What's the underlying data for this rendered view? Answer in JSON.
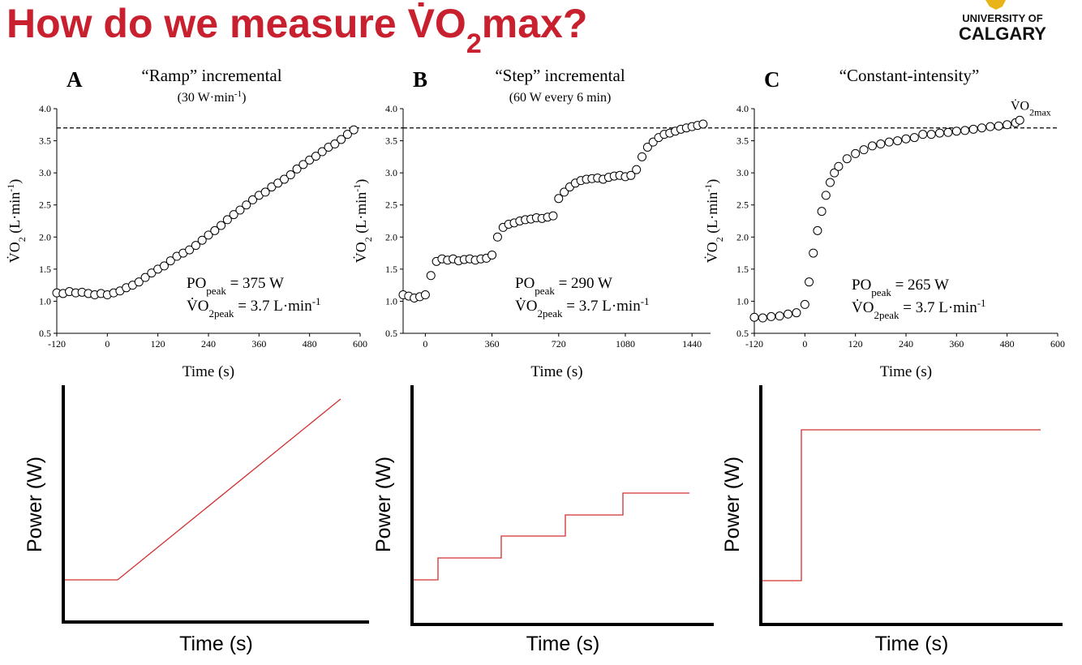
{
  "header": {
    "title": [
      "How do we measure V̇O",
      "2",
      "max?"
    ],
    "logo": [
      "UNIVERSITY OF",
      "CALGARY"
    ]
  },
  "chart_data": [
    {
      "type": "scatter",
      "panel": "A",
      "title": "“Ramp” incremental",
      "subtitle": [
        "(30 W·min",
        "-1",
        ")"
      ],
      "x_label": "Time (s)",
      "y_label": [
        "V̇O",
        "2",
        " (L·min",
        "-1",
        ")"
      ],
      "xlim": [
        -120,
        600
      ],
      "xticks": [
        -120,
        0,
        120,
        240,
        360,
        480,
        600
      ],
      "ylim": [
        0.5,
        4.0
      ],
      "yticks": [
        0.5,
        {
          "value": 1.0,
          "label": "1.0"
        },
        1.5,
        {
          "value": 2.0,
          "label": "2.0"
        },
        2.5,
        {
          "value": 3.0,
          "label": "3.0"
        },
        3.5,
        {
          "value": 4.0,
          "label": "4.0"
        }
      ],
      "reference_line": 3.7,
      "annotations": [
        [
          "PO",
          "peak",
          "  =  375 W"
        ],
        [
          "V̇O",
          "2peak",
          " = 3.7 L·min",
          "-1"
        ]
      ],
      "x": [
        -120,
        -105,
        -90,
        -75,
        -60,
        -45,
        -30,
        -15,
        0,
        15,
        30,
        45,
        60,
        75,
        90,
        105,
        120,
        135,
        150,
        165,
        180,
        195,
        210,
        225,
        240,
        255,
        270,
        285,
        300,
        315,
        330,
        345,
        360,
        375,
        390,
        405,
        420,
        435,
        450,
        465,
        480,
        495,
        510,
        525,
        540,
        555,
        570,
        585
      ],
      "values": [
        1.13,
        1.12,
        1.15,
        1.13,
        1.14,
        1.12,
        1.1,
        1.12,
        1.1,
        1.13,
        1.16,
        1.21,
        1.25,
        1.3,
        1.37,
        1.44,
        1.5,
        1.55,
        1.63,
        1.7,
        1.75,
        1.8,
        1.87,
        1.95,
        2.03,
        2.1,
        2.18,
        2.27,
        2.35,
        2.42,
        2.5,
        2.58,
        2.65,
        2.7,
        2.78,
        2.84,
        2.9,
        2.97,
        3.06,
        3.13,
        3.2,
        3.26,
        3.33,
        3.4,
        3.45,
        3.52,
        3.6,
        3.67
      ]
    },
    {
      "type": "scatter",
      "panel": "B",
      "title": "“Step” incremental",
      "subtitle": [
        "(60 W every 6 min)"
      ],
      "x_label": "Time (s)",
      "y_label": [
        "V̇O",
        "2",
        " (L·min",
        "-1",
        ")"
      ],
      "xlim": [
        -120,
        1540
      ],
      "xticks": [
        0,
        360,
        720,
        1080,
        1440
      ],
      "ylim": [
        0.5,
        4.0
      ],
      "yticks": [
        0.5,
        {
          "value": 1.0,
          "label": "1.0"
        },
        1.5,
        {
          "value": 2.0,
          "label": "2.0"
        },
        2.5,
        {
          "value": 3.0,
          "label": "3.0"
        },
        3.5,
        {
          "value": 4.0,
          "label": "4.0"
        }
      ],
      "reference_line": 3.7,
      "annotations": [
        [
          "PO",
          "peak",
          "  =  290 W"
        ],
        [
          "V̇O",
          "2peak",
          " = 3.7 L·min",
          "-1"
        ]
      ],
      "x": [
        -120,
        -90,
        -60,
        -30,
        0,
        30,
        60,
        90,
        120,
        150,
        180,
        210,
        240,
        270,
        300,
        330,
        360,
        390,
        420,
        450,
        480,
        510,
        540,
        570,
        600,
        630,
        660,
        690,
        720,
        750,
        780,
        810,
        840,
        870,
        900,
        930,
        960,
        990,
        1020,
        1050,
        1080,
        1110,
        1140,
        1170,
        1200,
        1230,
        1260,
        1290,
        1320,
        1350,
        1380,
        1410,
        1440,
        1470,
        1500
      ],
      "values": [
        1.1,
        1.08,
        1.05,
        1.07,
        1.1,
        1.4,
        1.62,
        1.66,
        1.64,
        1.66,
        1.63,
        1.65,
        1.66,
        1.64,
        1.66,
        1.67,
        1.72,
        2.0,
        2.15,
        2.2,
        2.22,
        2.25,
        2.27,
        2.28,
        2.3,
        2.29,
        2.31,
        2.33,
        2.6,
        2.7,
        2.78,
        2.84,
        2.88,
        2.9,
        2.91,
        2.92,
        2.9,
        2.93,
        2.95,
        2.96,
        2.94,
        2.96,
        3.05,
        3.25,
        3.4,
        3.48,
        3.55,
        3.6,
        3.62,
        3.65,
        3.68,
        3.7,
        3.72,
        3.74,
        3.76
      ]
    },
    {
      "type": "scatter",
      "panel": "C",
      "title": "“Constant-intensity”",
      "x_label": "Time (s)",
      "y_label": [
        "V̇O",
        "2",
        " (L·min",
        "-1",
        ")"
      ],
      "xlim": [
        -120,
        600
      ],
      "xticks": [
        -120,
        0,
        120,
        240,
        360,
        480,
        600
      ],
      "ylim": [
        0.5,
        4.0
      ],
      "yticks": [
        0.5,
        {
          "value": 1.0,
          "label": "1.0"
        },
        1.5,
        {
          "value": 2.0,
          "label": "2.0"
        },
        2.5,
        {
          "value": 3.0,
          "label": "3.0"
        },
        3.5,
        {
          "value": 4.0,
          "label": "4.0"
        }
      ],
      "reference_line": 3.7,
      "reference_label": [
        "V̇O",
        "2max"
      ],
      "annotations": [
        [
          "PO",
          "peak",
          " = 265 W"
        ],
        [
          "V̇O",
          "2peak",
          " = 3.7 L·min",
          "-1"
        ]
      ],
      "x": [
        -120,
        -100,
        -80,
        -60,
        -40,
        -20,
        0,
        10,
        20,
        30,
        40,
        50,
        60,
        70,
        80,
        100,
        120,
        140,
        160,
        180,
        200,
        220,
        240,
        260,
        280,
        300,
        320,
        340,
        360,
        380,
        400,
        420,
        440,
        460,
        480,
        500,
        510
      ],
      "values": [
        0.75,
        0.74,
        0.76,
        0.77,
        0.8,
        0.82,
        0.95,
        1.3,
        1.75,
        2.1,
        2.4,
        2.65,
        2.85,
        3.0,
        3.1,
        3.22,
        3.3,
        3.36,
        3.42,
        3.45,
        3.48,
        3.5,
        3.53,
        3.55,
        3.6,
        3.6,
        3.62,
        3.63,
        3.65,
        3.66,
        3.68,
        3.7,
        3.72,
        3.73,
        3.75,
        3.78,
        3.82
      ]
    }
  ],
  "power_diagrams": [
    {
      "y_label": "Power (W)",
      "x_label": "Time (s)"
    },
    {
      "y_label": "Power (W)",
      "x_label": "Time (s)"
    },
    {
      "y_label": "Power (W)",
      "x_label": "Time (s)"
    }
  ]
}
